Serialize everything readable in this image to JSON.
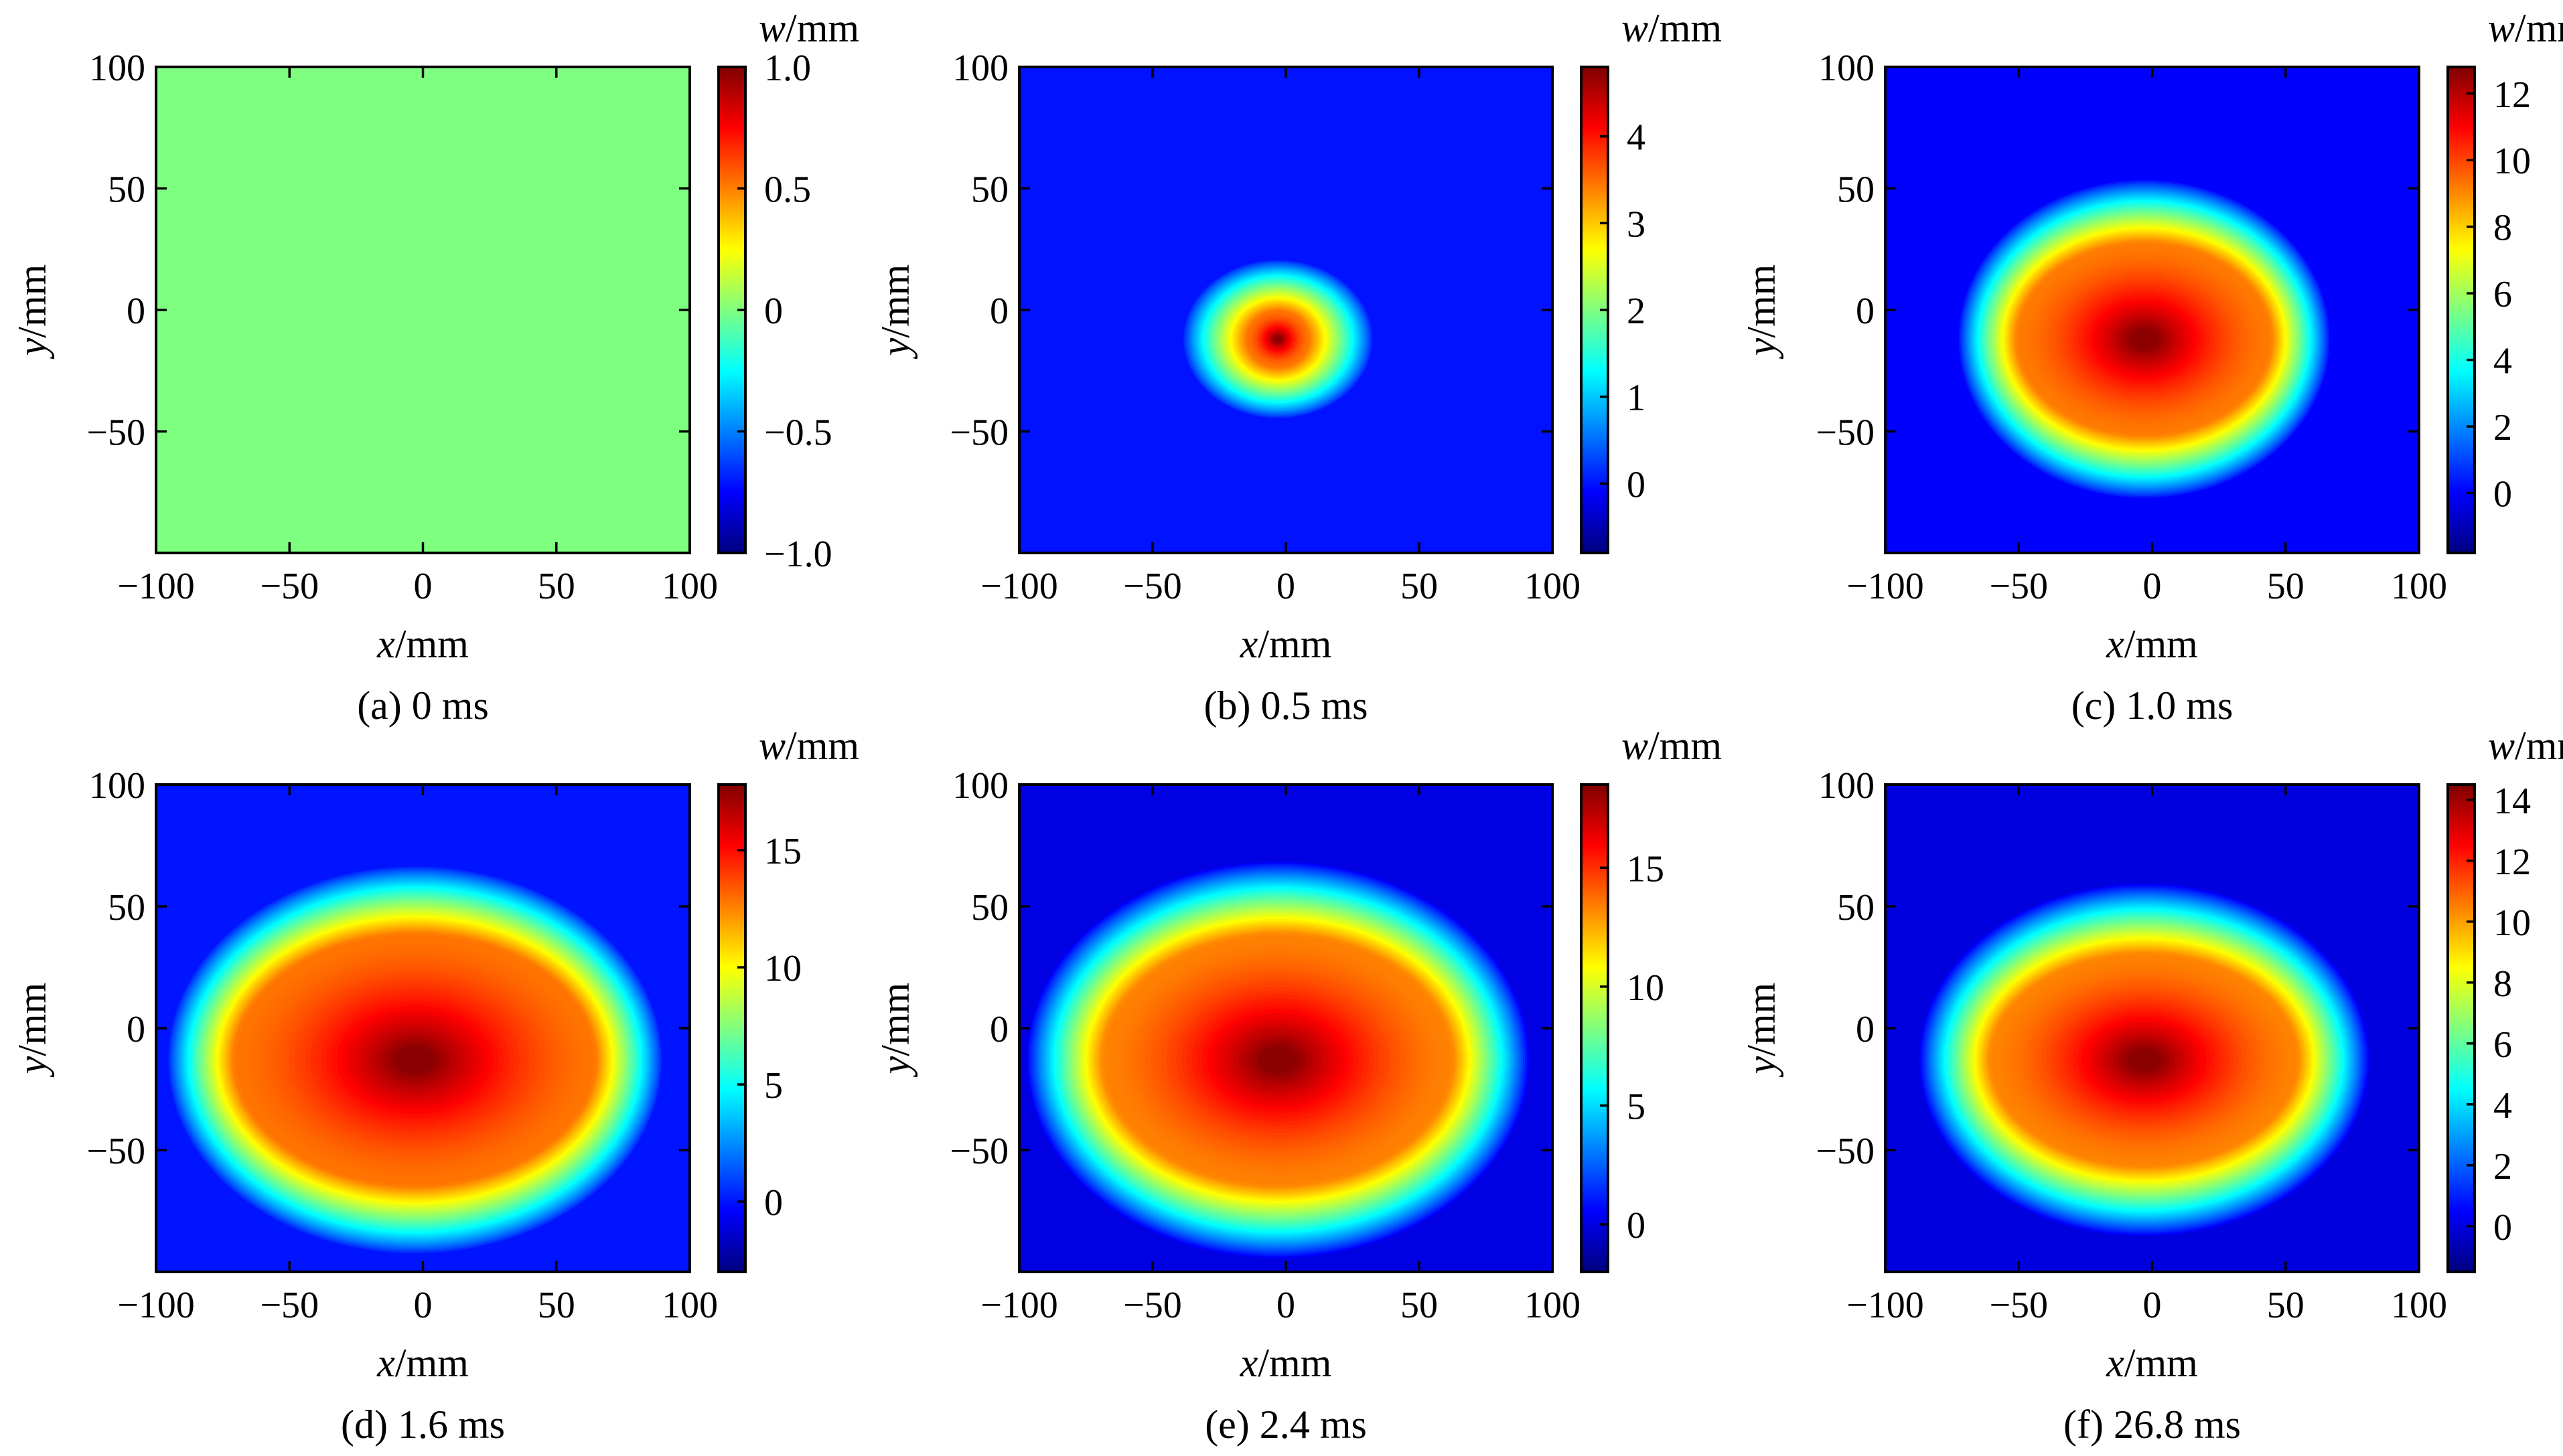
{
  "chart_data": [
    {
      "type": "heatmap",
      "caption": "(a) 0 ms",
      "x_axis": {
        "label_var": "x",
        "label_unit": "/mm",
        "ticks": [
          -100,
          -50,
          0,
          50,
          100
        ],
        "tick_labels": [
          "−100",
          "−50",
          "0",
          "50",
          "100"
        ],
        "range": [
          -100,
          100
        ]
      },
      "y_axis": {
        "label_var": "y",
        "label_unit": "/mm",
        "ticks": [
          -50,
          0,
          50,
          100
        ],
        "tick_labels": [
          "−50",
          "0",
          "50",
          "100"
        ],
        "range": [
          -100,
          100
        ]
      },
      "colorbar": {
        "label_var": "w",
        "label_unit": "/mm",
        "range": [
          -1.0,
          1.0
        ],
        "ticks": [
          -1.0,
          -0.5,
          0,
          0.5,
          1.0
        ],
        "tick_labels": [
          "−1.0",
          "−0.5",
          "0",
          "0.5",
          "1.0"
        ]
      },
      "field": {
        "uniform": true,
        "value": 0,
        "peak": 0,
        "baseline": 0,
        "center": [
          0,
          0
        ],
        "plateau_radius": [
          0,
          0
        ],
        "outer_radius": [
          0,
          0
        ]
      }
    },
    {
      "type": "heatmap",
      "caption": "(b) 0.5 ms",
      "x_axis": {
        "label_var": "x",
        "label_unit": "/mm",
        "ticks": [
          -100,
          -50,
          0,
          50,
          100
        ],
        "tick_labels": [
          "−100",
          "−50",
          "0",
          "50",
          "100"
        ],
        "range": [
          -100,
          100
        ]
      },
      "y_axis": {
        "label_var": "y",
        "label_unit": "/mm",
        "ticks": [
          -50,
          0,
          50,
          100
        ],
        "tick_labels": [
          "−50",
          "0",
          "50",
          "100"
        ],
        "range": [
          -100,
          100
        ]
      },
      "colorbar": {
        "label_var": "w",
        "label_unit": "/mm",
        "range": [
          -0.8,
          4.8
        ],
        "ticks": [
          0,
          1,
          2,
          3,
          4
        ],
        "tick_labels": [
          "0",
          "1",
          "2",
          "3",
          "4"
        ]
      },
      "field": {
        "uniform": false,
        "peak": 4.8,
        "baseline": 0,
        "center": [
          -3,
          -12
        ],
        "plateau_radius": [
          12,
          12
        ],
        "outer_radius": [
          36,
          33
        ]
      }
    },
    {
      "type": "heatmap",
      "caption": "(c) 1.0 ms",
      "x_axis": {
        "label_var": "x",
        "label_unit": "/mm",
        "ticks": [
          -100,
          -50,
          0,
          50,
          100
        ],
        "tick_labels": [
          "−100",
          "−50",
          "0",
          "50",
          "100"
        ],
        "range": [
          -100,
          100
        ]
      },
      "y_axis": {
        "label_var": "y",
        "label_unit": "/mm",
        "ticks": [
          -50,
          0,
          50,
          100
        ],
        "tick_labels": [
          "−50",
          "0",
          "50",
          "100"
        ],
        "range": [
          -100,
          100
        ]
      },
      "colorbar": {
        "label_var": "w",
        "label_unit": "/mm",
        "range": [
          -1.8,
          12.8
        ],
        "ticks": [
          0,
          2,
          4,
          6,
          8,
          10,
          12
        ],
        "tick_labels": [
          "0",
          "2",
          "4",
          "6",
          "8",
          "10",
          "12"
        ]
      },
      "field": {
        "uniform": false,
        "peak": 12.8,
        "baseline": 0,
        "center": [
          -3,
          -12
        ],
        "plateau_radius": [
          48,
          40
        ],
        "outer_radius": [
          70,
          66
        ]
      }
    },
    {
      "type": "heatmap",
      "caption": "(d) 1.6 ms",
      "x_axis": {
        "label_var": "x",
        "label_unit": "/mm",
        "ticks": [
          -100,
          -50,
          0,
          50,
          100
        ],
        "tick_labels": [
          "−100",
          "−50",
          "0",
          "50",
          "100"
        ],
        "range": [
          -100,
          100
        ]
      },
      "y_axis": {
        "label_var": "y",
        "label_unit": "/mm",
        "ticks": [
          -50,
          0,
          50,
          100
        ],
        "tick_labels": [
          "−50",
          "0",
          "50",
          "100"
        ],
        "range": [
          -100,
          100
        ]
      },
      "colorbar": {
        "label_var": "w",
        "label_unit": "/mm",
        "range": [
          -3.0,
          17.8
        ],
        "ticks": [
          0,
          5,
          10,
          15
        ],
        "tick_labels": [
          "0",
          "5",
          "10",
          "15"
        ]
      },
      "field": {
        "uniform": false,
        "peak": 17.8,
        "baseline": 0,
        "center": [
          -3,
          -13
        ],
        "plateau_radius": [
          68,
          52
        ],
        "outer_radius": [
          93,
          80
        ]
      }
    },
    {
      "type": "heatmap",
      "caption": "(e) 2.4 ms",
      "x_axis": {
        "label_var": "x",
        "label_unit": "/mm",
        "ticks": [
          -100,
          -50,
          0,
          50,
          100
        ],
        "tick_labels": [
          "−100",
          "−50",
          "0",
          "50",
          "100"
        ],
        "range": [
          -100,
          100
        ]
      },
      "y_axis": {
        "label_var": "y",
        "label_unit": "/mm",
        "ticks": [
          -50,
          0,
          50,
          100
        ],
        "tick_labels": [
          "−50",
          "0",
          "50",
          "100"
        ],
        "range": [
          -100,
          100
        ]
      },
      "colorbar": {
        "label_var": "w",
        "label_unit": "/mm",
        "range": [
          -2.0,
          18.5
        ],
        "ticks": [
          0,
          5,
          10,
          15
        ],
        "tick_labels": [
          "0",
          "5",
          "10",
          "15"
        ]
      },
      "field": {
        "uniform": false,
        "peak": 18.5,
        "baseline": 0,
        "center": [
          -3,
          -13
        ],
        "plateau_radius": [
          66,
          52
        ],
        "outer_radius": [
          95,
          82
        ]
      }
    },
    {
      "type": "heatmap",
      "caption": "(f) 26.8 ms",
      "x_axis": {
        "label_var": "x",
        "label_unit": "/mm",
        "ticks": [
          -100,
          -50,
          0,
          50,
          100
        ],
        "tick_labels": [
          "−100",
          "−50",
          "0",
          "50",
          "100"
        ],
        "range": [
          -100,
          100
        ]
      },
      "y_axis": {
        "label_var": "y",
        "label_unit": "/mm",
        "ticks": [
          -50,
          0,
          50,
          100
        ],
        "tick_labels": [
          "−50",
          "0",
          "50",
          "100"
        ],
        "range": [
          -100,
          100
        ]
      },
      "colorbar": {
        "label_var": "w",
        "label_unit": "/mm",
        "range": [
          -1.5,
          14.5
        ],
        "ticks": [
          0,
          2,
          4,
          6,
          8,
          10,
          12,
          14
        ],
        "tick_labels": [
          "0",
          "2",
          "4",
          "6",
          "8",
          "10",
          "12",
          "14"
        ]
      },
      "field": {
        "uniform": false,
        "peak": 14.5,
        "baseline": 0,
        "center": [
          -3,
          -13
        ],
        "plateau_radius": [
          58,
          44
        ],
        "outer_radius": [
          85,
          73
        ]
      }
    }
  ],
  "colormap": {
    "name": "jet",
    "stops": [
      "#00007f",
      "#0000ff",
      "#007fff",
      "#00ffff",
      "#7fff7f",
      "#ffff00",
      "#ff7f00",
      "#ff0000",
      "#7f0000"
    ]
  }
}
